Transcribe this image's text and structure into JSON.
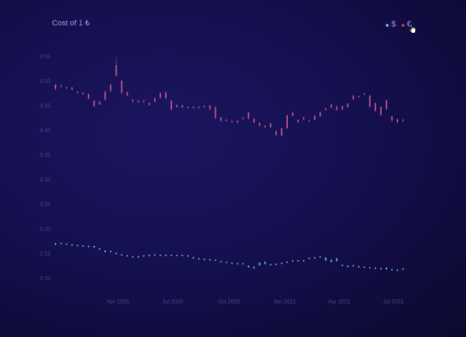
{
  "header": {
    "title": "Cost of 1 ₺"
  },
  "legend": [
    {
      "label": "$",
      "color": "#6cc6e8",
      "icon": "dot-icon"
    },
    {
      "label": "€",
      "color": "#b5487e",
      "icon": "dot-icon"
    }
  ],
  "colors": {
    "usd": "#6cc6e8",
    "eur": "#c0568c",
    "tick": "#4b4590",
    "title": "#a9a3e6"
  },
  "chart_data": {
    "type": "candlestick",
    "title": "Cost of 1 ₺",
    "xlabel": "",
    "ylabel": "",
    "ylim": [
      0.1,
      0.55
    ],
    "y_ticks": [
      "0.55",
      "0.50",
      "0.45",
      "0.40",
      "0.35",
      "0.30",
      "0.25",
      "0.20",
      "0.15",
      "0.10"
    ],
    "x_ticks": [
      "Apr 2020",
      "Jul 2020",
      "Oct 2020",
      "Jan 2021",
      "Apr 2021",
      "Jul 2021"
    ],
    "grid": false,
    "legend_position": "top-right",
    "series": [
      {
        "name": "€",
        "color": "#c0568c",
        "ohlc": [
          [
            0.492,
            0.494,
            0.48,
            0.484
          ],
          [
            0.49,
            0.493,
            0.486,
            0.488
          ],
          [
            0.487,
            0.488,
            0.484,
            0.485
          ],
          [
            0.486,
            0.488,
            0.48,
            0.482
          ],
          [
            0.478,
            0.479,
            0.475,
            0.476
          ],
          [
            0.476,
            0.478,
            0.471,
            0.473
          ],
          [
            0.473,
            0.475,
            0.462,
            0.464
          ],
          [
            0.46,
            0.461,
            0.447,
            0.449
          ],
          [
            0.458,
            0.46,
            0.451,
            0.452
          ],
          [
            0.462,
            0.481,
            0.46,
            0.478
          ],
          [
            0.48,
            0.495,
            0.476,
            0.492
          ],
          [
            0.51,
            0.548,
            0.51,
            0.532
          ],
          [
            0.5,
            0.502,
            0.472,
            0.476
          ],
          [
            0.477,
            0.478,
            0.468,
            0.47
          ],
          [
            0.462,
            0.463,
            0.455,
            0.458
          ],
          [
            0.46,
            0.462,
            0.455,
            0.457
          ],
          [
            0.46,
            0.462,
            0.455,
            0.459
          ],
          [
            0.455,
            0.456,
            0.449,
            0.451
          ],
          [
            0.458,
            0.467,
            0.456,
            0.465
          ],
          [
            0.466,
            0.477,
            0.464,
            0.475
          ],
          [
            0.477,
            0.478,
            0.462,
            0.465
          ],
          [
            0.46,
            0.461,
            0.439,
            0.442
          ],
          [
            0.451,
            0.452,
            0.445,
            0.447
          ],
          [
            0.45,
            0.452,
            0.444,
            0.446
          ],
          [
            0.447,
            0.448,
            0.445,
            0.446
          ],
          [
            0.447,
            0.448,
            0.444,
            0.445
          ],
          [
            0.447,
            0.449,
            0.444,
            0.446
          ],
          [
            0.449,
            0.451,
            0.446,
            0.448
          ],
          [
            0.45,
            0.451,
            0.44,
            0.443
          ],
          [
            0.447,
            0.448,
            0.422,
            0.425
          ],
          [
            0.426,
            0.427,
            0.417,
            0.419
          ],
          [
            0.421,
            0.423,
            0.418,
            0.42
          ],
          [
            0.418,
            0.421,
            0.416,
            0.418
          ],
          [
            0.419,
            0.42,
            0.413,
            0.415
          ],
          [
            0.424,
            0.427,
            0.421,
            0.425
          ],
          [
            0.436,
            0.437,
            0.421,
            0.424
          ],
          [
            0.423,
            0.426,
            0.414,
            0.415
          ],
          [
            0.415,
            0.416,
            0.407,
            0.409
          ],
          [
            0.409,
            0.41,
            0.404,
            0.406
          ],
          [
            0.414,
            0.415,
            0.404,
            0.406
          ],
          [
            0.398,
            0.399,
            0.387,
            0.39
          ],
          [
            0.404,
            0.405,
            0.387,
            0.389
          ],
          [
            0.404,
            0.432,
            0.403,
            0.43
          ],
          [
            0.429,
            0.438,
            0.428,
            0.435
          ],
          [
            0.421,
            0.422,
            0.414,
            0.416
          ],
          [
            0.426,
            0.427,
            0.42,
            0.422
          ],
          [
            0.42,
            0.421,
            0.416,
            0.418
          ],
          [
            0.421,
            0.431,
            0.419,
            0.429
          ],
          [
            0.428,
            0.438,
            0.427,
            0.436
          ],
          [
            0.444,
            0.446,
            0.439,
            0.441
          ],
          [
            0.452,
            0.453,
            0.443,
            0.446
          ],
          [
            0.448,
            0.45,
            0.439,
            0.441
          ],
          [
            0.449,
            0.45,
            0.44,
            0.442
          ],
          [
            0.454,
            0.455,
            0.445,
            0.447
          ],
          [
            0.47,
            0.471,
            0.46,
            0.463
          ],
          [
            0.468,
            0.47,
            0.466,
            0.469
          ],
          [
            0.473,
            0.476,
            0.471,
            0.474
          ],
          [
            0.47,
            0.472,
            0.445,
            0.448
          ],
          [
            0.455,
            0.456,
            0.437,
            0.439
          ],
          [
            0.447,
            0.448,
            0.428,
            0.431
          ],
          [
            0.46,
            0.462,
            0.44,
            0.443
          ],
          [
            0.428,
            0.429,
            0.417,
            0.42
          ],
          [
            0.422,
            0.424,
            0.414,
            0.416
          ],
          [
            0.421,
            0.423,
            0.416,
            0.419
          ]
        ]
      },
      {
        "name": "$",
        "color": "#6cc6e8",
        "ohlc": [
          [
            0.17,
            0.172,
            0.167,
            0.168
          ],
          [
            0.171,
            0.172,
            0.169,
            0.17
          ],
          [
            0.17,
            0.17,
            0.168,
            0.169
          ],
          [
            0.168,
            0.169,
            0.167,
            0.168
          ],
          [
            0.167,
            0.168,
            0.166,
            0.167
          ],
          [
            0.166,
            0.167,
            0.164,
            0.165
          ],
          [
            0.165,
            0.166,
            0.162,
            0.163
          ],
          [
            0.165,
            0.166,
            0.161,
            0.162
          ],
          [
            0.16,
            0.161,
            0.157,
            0.158
          ],
          [
            0.156,
            0.157,
            0.152,
            0.153
          ],
          [
            0.155,
            0.156,
            0.152,
            0.153
          ],
          [
            0.151,
            0.152,
            0.149,
            0.15
          ],
          [
            0.148,
            0.149,
            0.146,
            0.147
          ],
          [
            0.146,
            0.147,
            0.144,
            0.145
          ],
          [
            0.144,
            0.145,
            0.143,
            0.144
          ],
          [
            0.144,
            0.145,
            0.141,
            0.142
          ],
          [
            0.146,
            0.147,
            0.143,
            0.145
          ],
          [
            0.147,
            0.148,
            0.146,
            0.147
          ],
          [
            0.148,
            0.149,
            0.147,
            0.148
          ],
          [
            0.147,
            0.148,
            0.146,
            0.147
          ],
          [
            0.147,
            0.148,
            0.146,
            0.147
          ],
          [
            0.147,
            0.147,
            0.146,
            0.146
          ],
          [
            0.147,
            0.147,
            0.146,
            0.146
          ],
          [
            0.147,
            0.148,
            0.146,
            0.147
          ],
          [
            0.146,
            0.147,
            0.143,
            0.144
          ],
          [
            0.142,
            0.143,
            0.139,
            0.14
          ],
          [
            0.14,
            0.141,
            0.138,
            0.139
          ],
          [
            0.139,
            0.14,
            0.137,
            0.138
          ],
          [
            0.138,
            0.139,
            0.136,
            0.137
          ],
          [
            0.137,
            0.138,
            0.135,
            0.136
          ],
          [
            0.134,
            0.135,
            0.132,
            0.133
          ],
          [
            0.133,
            0.134,
            0.131,
            0.132
          ],
          [
            0.131,
            0.132,
            0.129,
            0.13
          ],
          [
            0.13,
            0.131,
            0.128,
            0.129
          ],
          [
            0.13,
            0.131,
            0.128,
            0.129
          ],
          [
            0.125,
            0.126,
            0.121,
            0.122
          ],
          [
            0.123,
            0.124,
            0.119,
            0.12
          ],
          [
            0.131,
            0.132,
            0.125,
            0.126
          ],
          [
            0.133,
            0.134,
            0.127,
            0.129
          ],
          [
            0.128,
            0.129,
            0.126,
            0.127
          ],
          [
            0.129,
            0.13,
            0.127,
            0.128
          ],
          [
            0.131,
            0.132,
            0.128,
            0.129
          ],
          [
            0.133,
            0.134,
            0.131,
            0.132
          ],
          [
            0.136,
            0.137,
            0.134,
            0.135
          ],
          [
            0.136,
            0.137,
            0.134,
            0.135
          ],
          [
            0.136,
            0.137,
            0.134,
            0.135
          ],
          [
            0.141,
            0.142,
            0.138,
            0.139
          ],
          [
            0.142,
            0.143,
            0.14,
            0.141
          ],
          [
            0.144,
            0.145,
            0.142,
            0.143
          ],
          [
            0.141,
            0.143,
            0.135,
            0.136
          ],
          [
            0.137,
            0.138,
            0.131,
            0.133
          ],
          [
            0.14,
            0.141,
            0.133,
            0.135
          ],
          [
            0.127,
            0.128,
            0.124,
            0.125
          ],
          [
            0.125,
            0.126,
            0.122,
            0.123
          ],
          [
            0.126,
            0.127,
            0.124,
            0.125
          ],
          [
            0.124,
            0.125,
            0.121,
            0.122
          ],
          [
            0.123,
            0.124,
            0.121,
            0.122
          ],
          [
            0.122,
            0.123,
            0.12,
            0.121
          ],
          [
            0.121,
            0.122,
            0.119,
            0.12
          ],
          [
            0.12,
            0.121,
            0.117,
            0.118
          ],
          [
            0.121,
            0.122,
            0.117,
            0.118
          ],
          [
            0.118,
            0.119,
            0.115,
            0.116
          ],
          [
            0.117,
            0.118,
            0.116,
            0.117
          ],
          [
            0.119,
            0.121,
            0.117,
            0.118
          ]
        ]
      }
    ]
  }
}
